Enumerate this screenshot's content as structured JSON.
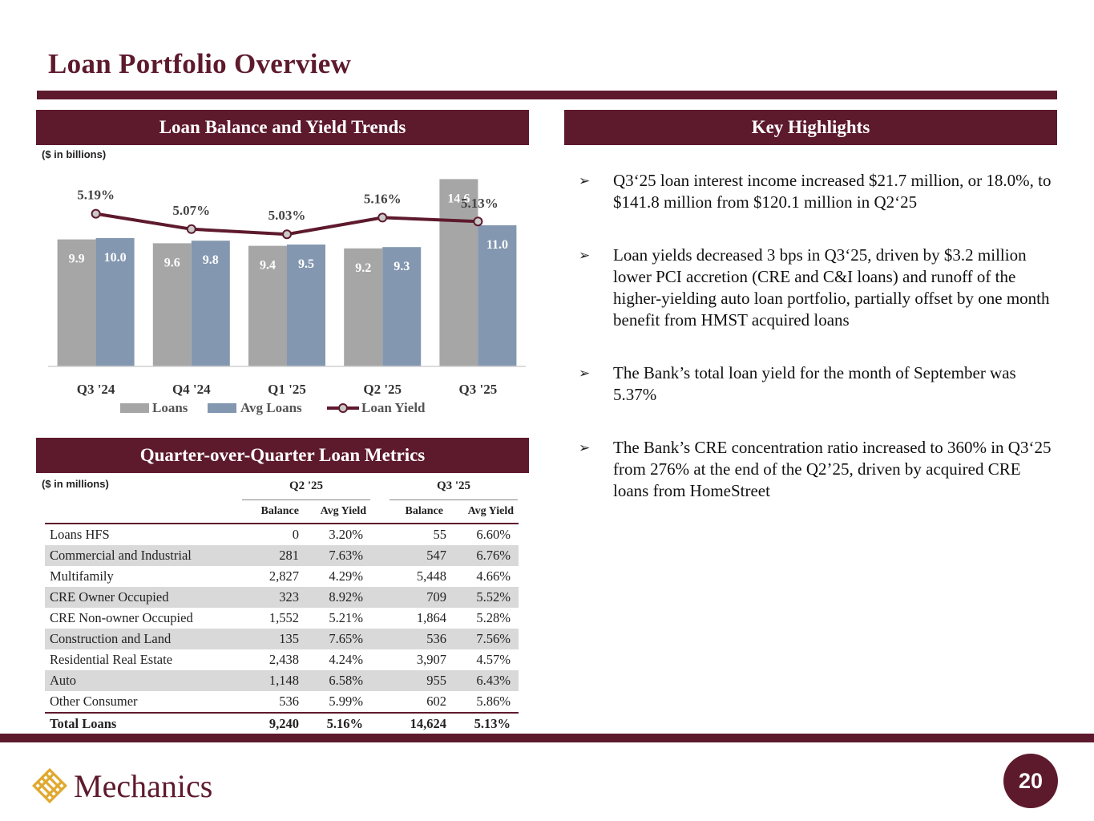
{
  "title": "Loan Portfolio Overview",
  "colors": {
    "brand": "#5e1a2d",
    "loans_bar": "#a6a6a6",
    "avg_loans_bar": "#8497b0",
    "alt_row": "#d9d9d9"
  },
  "chart_section": {
    "header": "Loan Balance and Yield Trends",
    "unit_note": "($ in billions)"
  },
  "chart_data": {
    "type": "bar",
    "title": "Loan Balance and Yield Trends",
    "categories": [
      "Q3 '24",
      "Q4 '24",
      "Q1 '25",
      "Q2 '25",
      "Q3 '25"
    ],
    "series": [
      {
        "name": "Loans",
        "type": "bar",
        "values": [
          9.9,
          9.6,
          9.4,
          9.2,
          14.6
        ],
        "labels": [
          "9.9",
          "9.6",
          "9.4",
          "9.2",
          "14.6"
        ]
      },
      {
        "name": "Avg Loans",
        "type": "bar",
        "values": [
          10.0,
          9.8,
          9.5,
          9.3,
          11.0
        ],
        "labels": [
          "10.0",
          "9.8",
          "9.5",
          "9.3",
          "11.0"
        ]
      },
      {
        "name": "Loan Yield",
        "type": "line",
        "values": [
          5.19,
          5.07,
          5.03,
          5.16,
          5.13
        ],
        "labels": [
          "5.19%",
          "5.07%",
          "5.03%",
          "5.16%",
          "5.13%"
        ]
      }
    ],
    "ylim": [
      0,
      15
    ],
    "y2lim": [
      4.0,
      5.5
    ],
    "legend": "bottom",
    "xlabel": "",
    "ylabel": ""
  },
  "highlights_section": {
    "header": "Key Highlights",
    "bullet_glyph": "➢",
    "items": [
      "Q3‘25 loan interest income increased $21.7 million, or 18.0%, to $141.8 million from $120.1 million in Q2‘25",
      "Loan yields decreased 3 bps in Q3‘25, driven by $3.2 million lower PCI accretion (CRE and C&I loans) and runoff of the higher-yielding auto loan portfolio, partially offset by one month benefit from HMST acquired loans",
      "The Bank’s total loan yield for the month of September was 5.37%",
      "The Bank’s CRE concentration ratio increased to 360% in Q3‘25 from 276% at the end of the Q2’25, driven by acquired CRE loans from HomeStreet"
    ]
  },
  "metrics_section": {
    "header": "Quarter-over-Quarter Loan Metrics",
    "unit_note": "($ in millions)",
    "groups": [
      "Q2 '25",
      "Q3 '25"
    ],
    "subheaders": [
      "Balance",
      "Avg Yield",
      "Balance",
      "Avg Yield"
    ],
    "rows": [
      [
        "Loans HFS",
        "0",
        "3.20%",
        "55",
        "6.60%"
      ],
      [
        "Commercial and Industrial",
        "281",
        "7.63%",
        "547",
        "6.76%"
      ],
      [
        "Multifamily",
        "2,827",
        "4.29%",
        "5,448",
        "4.66%"
      ],
      [
        "CRE Owner Occupied",
        "323",
        "8.92%",
        "709",
        "5.52%"
      ],
      [
        "CRE Non-owner Occupied",
        "1,552",
        "5.21%",
        "1,864",
        "5.28%"
      ],
      [
        "Construction and Land",
        "135",
        "7.65%",
        "536",
        "7.56%"
      ],
      [
        "Residential Real Estate",
        "2,438",
        "4.24%",
        "3,907",
        "4.57%"
      ],
      [
        "Auto",
        "1,148",
        "6.58%",
        "955",
        "6.43%"
      ],
      [
        "Other Consumer",
        "536",
        "5.99%",
        "602",
        "5.86%"
      ]
    ],
    "total": [
      "Total Loans",
      "9,240",
      "5.16%",
      "14,624",
      "5.13%"
    ]
  },
  "footer": {
    "logo_text": "Mechanics",
    "page_number": "20"
  }
}
